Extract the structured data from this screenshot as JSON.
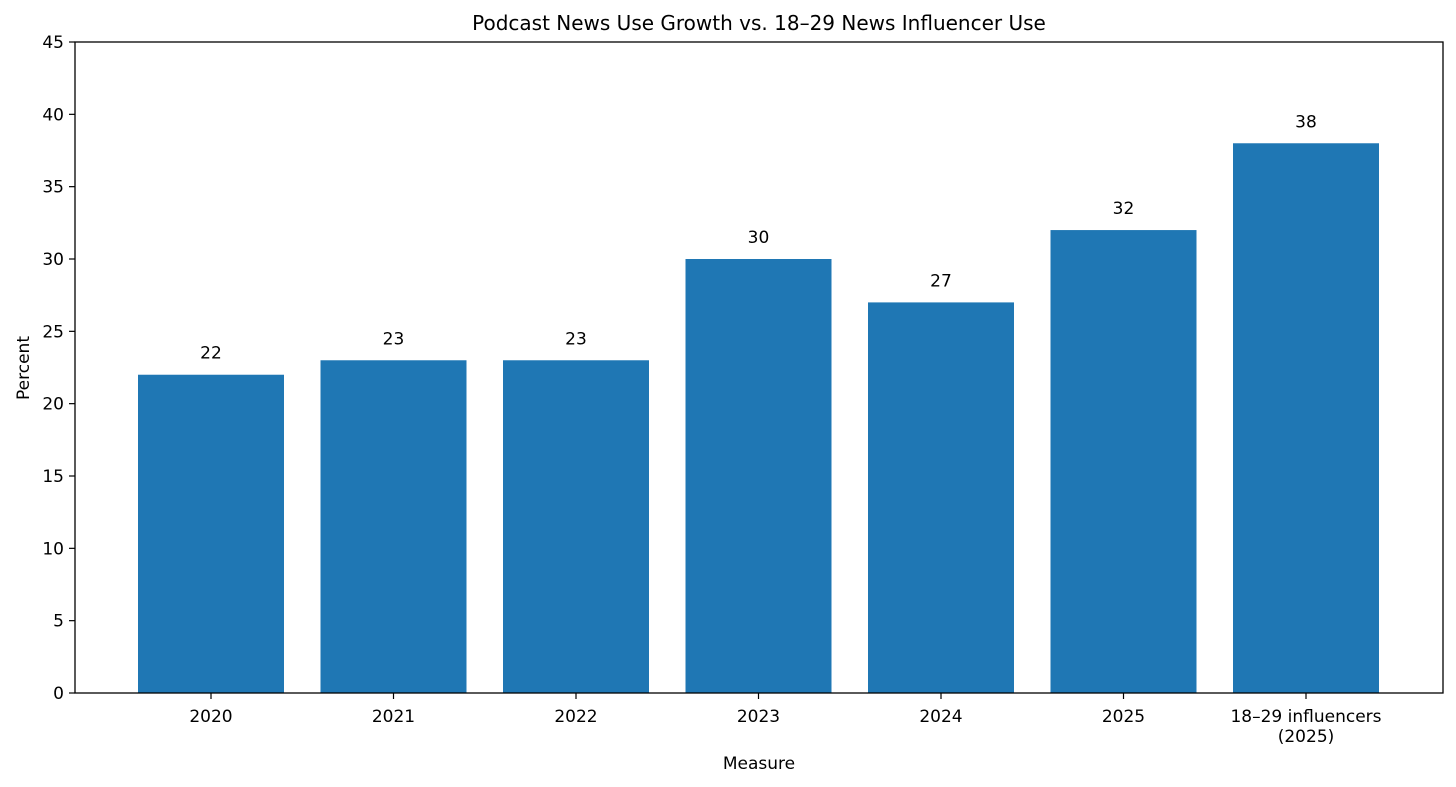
{
  "chart_data": {
    "type": "bar",
    "title": "Podcast News Use Growth vs. 18–29 News Influencer Use",
    "xlabel": "Measure",
    "ylabel": "Percent",
    "ylim": [
      0,
      45
    ],
    "yticks": [
      0,
      5,
      10,
      15,
      20,
      25,
      30,
      35,
      40,
      45
    ],
    "grid": false,
    "categories": [
      "2020",
      "2021",
      "2022",
      "2023",
      "2024",
      "2025",
      "18–29 influencers\n(2025)"
    ],
    "values": [
      22,
      23,
      23,
      30,
      27,
      32,
      38
    ],
    "bar_color": "#1f77b4"
  }
}
